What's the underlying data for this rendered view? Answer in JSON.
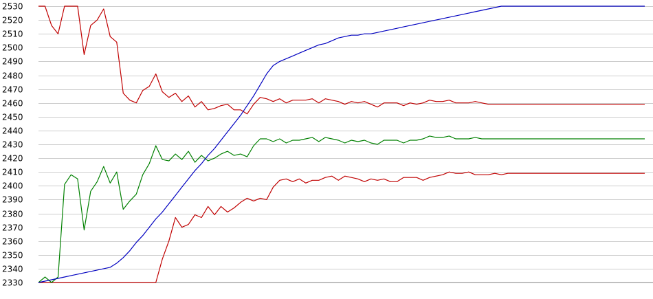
{
  "chart_data": {
    "type": "line",
    "title": "",
    "xlabel": "",
    "ylabel": "",
    "ylim": [
      2330,
      2530
    ],
    "yticks": [
      2330,
      2340,
      2350,
      2360,
      2370,
      2380,
      2390,
      2400,
      2410,
      2420,
      2430,
      2440,
      2450,
      2460,
      2470,
      2480,
      2490,
      2500,
      2510,
      2520,
      2530
    ],
    "grid": true,
    "legend": "none",
    "x": [
      0,
      1,
      2,
      3,
      4,
      5,
      6,
      7,
      8,
      9,
      10,
      11,
      12,
      13,
      14,
      15,
      16,
      17,
      18,
      19,
      20,
      21,
      22,
      23,
      24,
      25,
      26,
      27,
      28,
      29,
      30,
      31,
      32,
      33,
      34,
      35,
      36,
      37,
      38,
      39,
      40,
      41,
      42,
      43,
      44,
      45,
      46,
      47,
      48,
      49,
      50,
      51,
      52,
      53,
      54,
      55,
      56,
      57,
      58,
      59,
      60,
      61,
      62,
      63,
      64,
      65,
      66,
      67,
      68,
      69,
      70,
      71,
      72,
      73,
      74,
      75,
      76,
      77,
      78,
      79,
      80,
      81,
      82,
      83,
      84,
      85,
      86,
      87,
      88,
      89,
      90,
      91,
      92,
      93
    ],
    "series": [
      {
        "color": "#c00000",
        "values": [
          2530,
          2530,
          2516,
          2510,
          2530,
          2530,
          2530,
          2495,
          2516,
          2520,
          2528,
          2508,
          2504,
          2467,
          2462,
          2460,
          2469,
          2472,
          2481,
          2468,
          2464,
          2467,
          2461,
          2465,
          2457,
          2461,
          2455,
          2456,
          2458,
          2459,
          2455,
          2455,
          2452,
          2459,
          2464,
          2463,
          2461,
          2463,
          2460,
          2462,
          2462,
          2462,
          2463,
          2460,
          2463,
          2462,
          2461,
          2459,
          2461,
          2460,
          2461,
          2459,
          2457,
          2460,
          2460,
          2460,
          2458,
          2460,
          2459,
          2460,
          2462,
          2461,
          2461,
          2462,
          2460,
          2460,
          2460,
          2461,
          2460,
          2459,
          2459,
          2459,
          2459,
          2459,
          2459,
          2459,
          2459,
          2459,
          2459,
          2459,
          2459,
          2459,
          2459,
          2459,
          2459,
          2459,
          2459,
          2459,
          2459,
          2459,
          2459,
          2459,
          2459,
          2459
        ]
      },
      {
        "color": "#c00000",
        "values": [
          2330,
          2330,
          2330,
          2330,
          2330,
          2330,
          2330,
          2330,
          2330,
          2330,
          2330,
          2330,
          2330,
          2330,
          2330,
          2330,
          2330,
          2330,
          2330,
          2347,
          2360,
          2377,
          2370,
          2372,
          2379,
          2377,
          2385,
          2379,
          2385,
          2381,
          2384,
          2388,
          2391,
          2389,
          2391,
          2390,
          2399,
          2404,
          2405,
          2403,
          2405,
          2402,
          2404,
          2404,
          2406,
          2407,
          2404,
          2407,
          2406,
          2405,
          2403,
          2405,
          2404,
          2405,
          2403,
          2403,
          2406,
          2406,
          2406,
          2404,
          2406,
          2407,
          2408,
          2410,
          2409,
          2409,
          2410,
          2408,
          2408,
          2408,
          2409,
          2408,
          2409,
          2409,
          2409,
          2409,
          2409,
          2409,
          2409,
          2409,
          2409,
          2409,
          2409,
          2409,
          2409,
          2409,
          2409,
          2409,
          2409,
          2409,
          2409,
          2409,
          2409,
          2409
        ]
      },
      {
        "color": "#008000",
        "values": [
          2330,
          2334,
          2330,
          2334,
          2401,
          2408,
          2405,
          2368,
          2396,
          2403,
          2414,
          2402,
          2410,
          2383,
          2389,
          2394,
          2408,
          2416,
          2429,
          2419,
          2418,
          2423,
          2419,
          2425,
          2417,
          2422,
          2418,
          2420,
          2423,
          2425,
          2422,
          2423,
          2421,
          2429,
          2434,
          2434,
          2432,
          2434,
          2431,
          2433,
          2433,
          2434,
          2435,
          2432,
          2435,
          2434,
          2433,
          2431,
          2433,
          2432,
          2433,
          2431,
          2430,
          2433,
          2433,
          2433,
          2431,
          2433,
          2433,
          2434,
          2436,
          2435,
          2435,
          2436,
          2434,
          2434,
          2434,
          2435,
          2434,
          2434,
          2434,
          2434,
          2434,
          2434,
          2434,
          2434,
          2434,
          2434,
          2434,
          2434,
          2434,
          2434,
          2434,
          2434,
          2434,
          2434,
          2434,
          2434,
          2434,
          2434,
          2434,
          2434,
          2434,
          2434
        ]
      },
      {
        "color": "#0000c0",
        "values": [
          2330,
          2331,
          2332,
          2333,
          2334,
          2335,
          2336,
          2337,
          2338,
          2339,
          2340,
          2341,
          2344,
          2348,
          2353,
          2359,
          2364,
          2370,
          2376,
          2381,
          2387,
          2393,
          2399,
          2405,
          2411,
          2416,
          2422,
          2427,
          2433,
          2439,
          2445,
          2451,
          2458,
          2465,
          2473,
          2481,
          2487,
          2490,
          2492,
          2494,
          2496,
          2498,
          2500,
          2502,
          2503,
          2505,
          2507,
          2508,
          2509,
          2509,
          2510,
          2510,
          2511,
          2512,
          2513,
          2514,
          2515,
          2516,
          2517,
          2518,
          2519,
          2520,
          2521,
          2522,
          2523,
          2524,
          2525,
          2526,
          2527,
          2528,
          2529,
          2530,
          2530,
          2530,
          2530,
          2530,
          2530,
          2530,
          2530,
          2530,
          2530,
          2530,
          2530,
          2530,
          2530,
          2530,
          2530,
          2530,
          2530,
          2530,
          2530,
          2530,
          2530,
          2530
        ]
      }
    ]
  }
}
